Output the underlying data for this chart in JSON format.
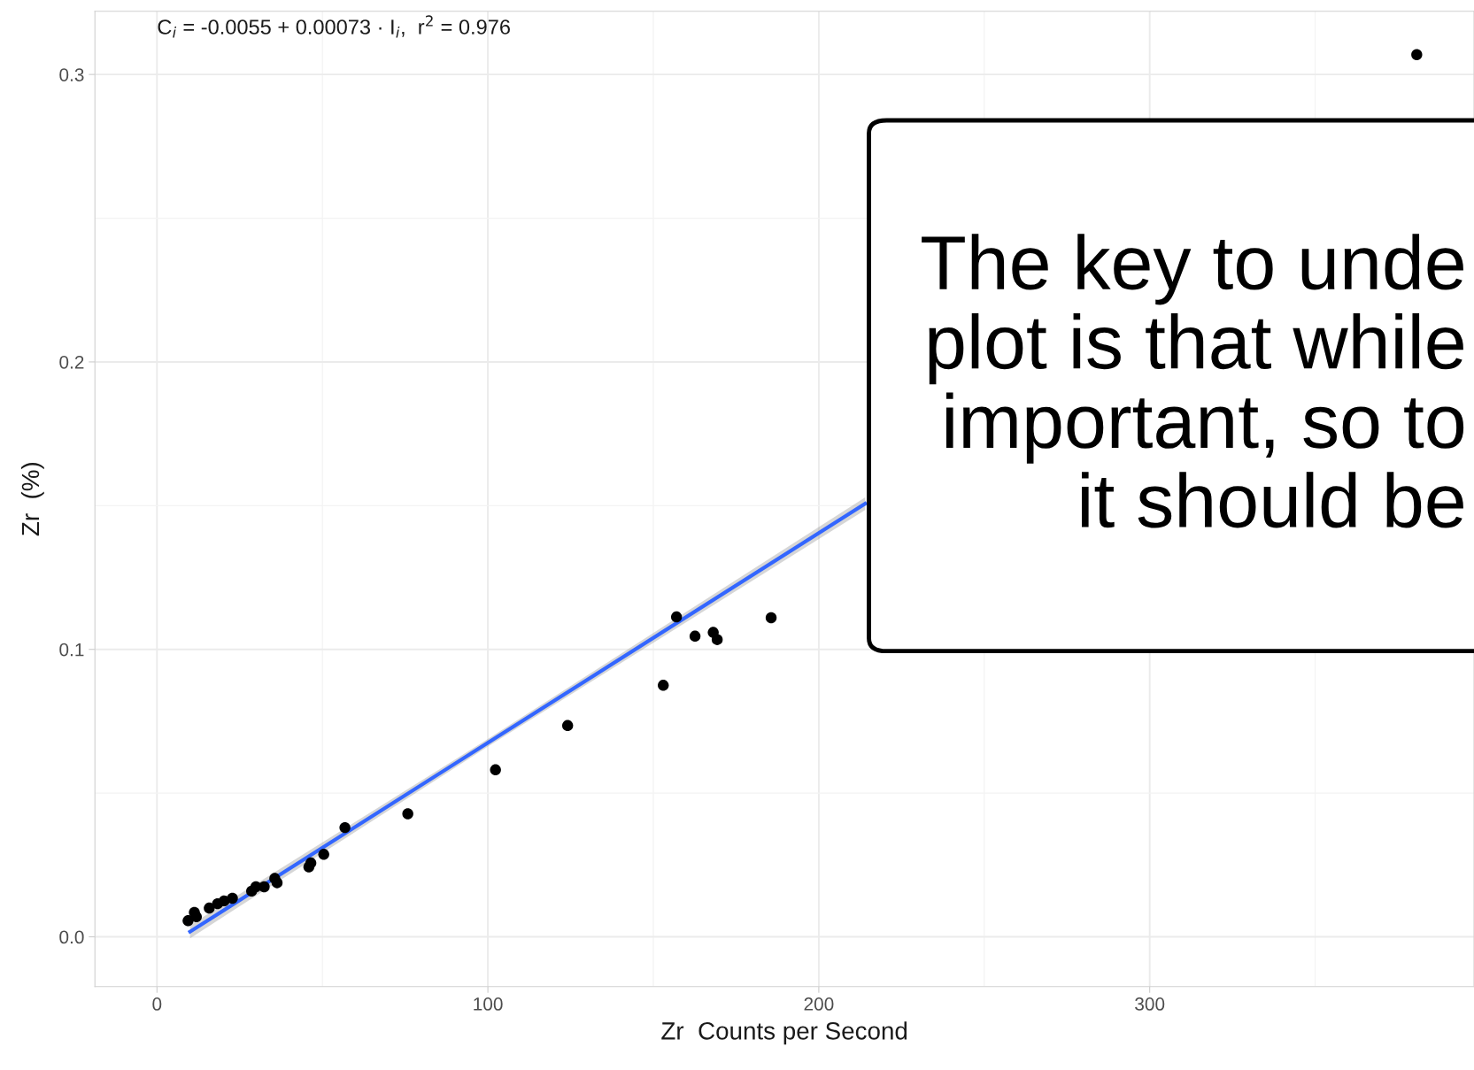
{
  "chart_data": {
    "type": "scatter",
    "xlabel": "Zr  Counts per Second",
    "ylabel": "Zr  (%)",
    "xlim": [
      -18.75,
      398
    ],
    "ylim": [
      -0.0173,
      0.322
    ],
    "xticks": [
      0,
      100,
      200,
      300
    ],
    "yticks": [
      {
        "value": 0,
        "label": "0.0"
      },
      {
        "value": 0.1,
        "label": "0.1"
      },
      {
        "value": 0.2,
        "label": "0.2"
      },
      {
        "value": 0.3,
        "label": "0.3"
      }
    ],
    "grid": true,
    "marker": "circle",
    "series": [
      {
        "color": "#000000",
        "x": [
          9.4,
          11.3,
          11.9,
          15.8,
          18.3,
          20.3,
          22.8,
          28.6,
          29.9,
          32.4,
          35.6,
          36.3,
          45.9,
          46.5,
          50.4,
          56.8,
          75.8,
          102.3,
          124.1,
          153,
          157,
          162.6,
          168.1,
          169.3,
          185.6,
          380.7
        ],
        "values": [
          0.0056,
          0.0085,
          0.007,
          0.01,
          0.0115,
          0.0125,
          0.0134,
          0.0159,
          0.0174,
          0.0174,
          0.0203,
          0.0188,
          0.0243,
          0.0257,
          0.0287,
          0.038,
          0.0428,
          0.0581,
          0.0735,
          0.0875,
          0.1113,
          0.1046,
          0.1059,
          0.1034,
          0.111,
          0.3069
        ]
      },
      {
        "type": "line",
        "marker": "none",
        "color": "#3366ff",
        "x": [
          10,
          100,
          214
        ],
        "values": [
          0.0018,
          0.0675,
          0.1507
        ],
        "lower": [
          -0.0005,
          0.0662,
          0.1485
        ],
        "upper": [
          0.0041,
          0.0688,
          0.1529
        ]
      }
    ],
    "annotations": [
      "C$_{i}$ = -0.0055 + 0.00073 · I$_{i}$,  r$^{2}$ = 0.976",
      "The key to unde\nplot is that while\nimportant, so to\nit should be"
    ]
  }
}
